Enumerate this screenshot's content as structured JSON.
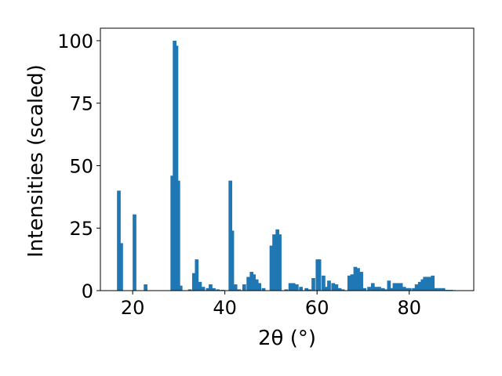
{
  "chart_data": {
    "type": "bar",
    "title": "",
    "xlabel": "2θ (°)",
    "ylabel": "Intensities (scaled)",
    "xlim": [
      13,
      94
    ],
    "ylim": [
      0,
      105
    ],
    "xticks": [
      20,
      40,
      60,
      80
    ],
    "yticks": [
      0,
      25,
      50,
      75,
      100
    ],
    "bar_width": 0.8,
    "bar_color": "#1f77b4",
    "grid": false,
    "x": [
      17.0,
      17.5,
      20.4,
      22.8,
      28.6,
      29.1,
      29.5,
      29.9,
      30.4,
      32.4,
      33.3,
      33.9,
      34.6,
      35.3,
      36.3,
      36.9,
      37.6,
      38.5,
      39.5,
      41.2,
      41.6,
      42.3,
      43.1,
      44.2,
      45.1,
      45.8,
      46.3,
      46.9,
      47.5,
      48.4,
      50.1,
      50.7,
      51.4,
      51.9,
      53.3,
      54.2,
      54.9,
      55.6,
      56.5,
      57.7,
      58.4,
      59.2,
      60.1,
      60.5,
      61.4,
      61.9,
      62.6,
      63.5,
      64.2,
      64.9,
      65.6,
      67.0,
      67.6,
      68.3,
      68.9,
      69.6,
      70.3,
      71.3,
      72.1,
      72.8,
      73.5,
      74.3,
      74.9,
      75.6,
      76.2,
      76.8,
      77.5,
      78.2,
      78.9,
      79.5,
      80.1,
      81.0,
      81.6,
      82.3,
      82.9,
      83.4,
      83.9,
      84.5,
      85.1,
      85.8,
      86.6,
      87.4,
      88.2,
      89.0,
      89.7
    ],
    "values": [
      40.0,
      19.0,
      30.5,
      2.5,
      46.0,
      100.0,
      98.0,
      44.0,
      2.0,
      0.5,
      7.0,
      12.5,
      3.5,
      1.5,
      1.0,
      2.5,
      1.0,
      0.5,
      0.3,
      44.0,
      24.0,
      2.5,
      0.5,
      2.5,
      5.5,
      7.5,
      6.5,
      4.5,
      3.0,
      1.0,
      18.0,
      22.5,
      24.5,
      22.5,
      0.5,
      3.0,
      3.0,
      2.5,
      1.5,
      1.0,
      0.5,
      5.0,
      12.5,
      12.5,
      6.0,
      1.5,
      4.0,
      3.0,
      2.5,
      1.0,
      0.5,
      6.0,
      6.5,
      9.5,
      9.0,
      7.5,
      1.0,
      1.5,
      3.0,
      1.5,
      1.5,
      1.0,
      0.5,
      4.0,
      1.0,
      3.0,
      3.0,
      3.0,
      1.5,
      1.0,
      1.0,
      1.0,
      2.5,
      3.5,
      4.5,
      5.5,
      5.5,
      5.5,
      6.0,
      1.0,
      1.0,
      1.0,
      0.3,
      0.3,
      0.2
    ]
  }
}
